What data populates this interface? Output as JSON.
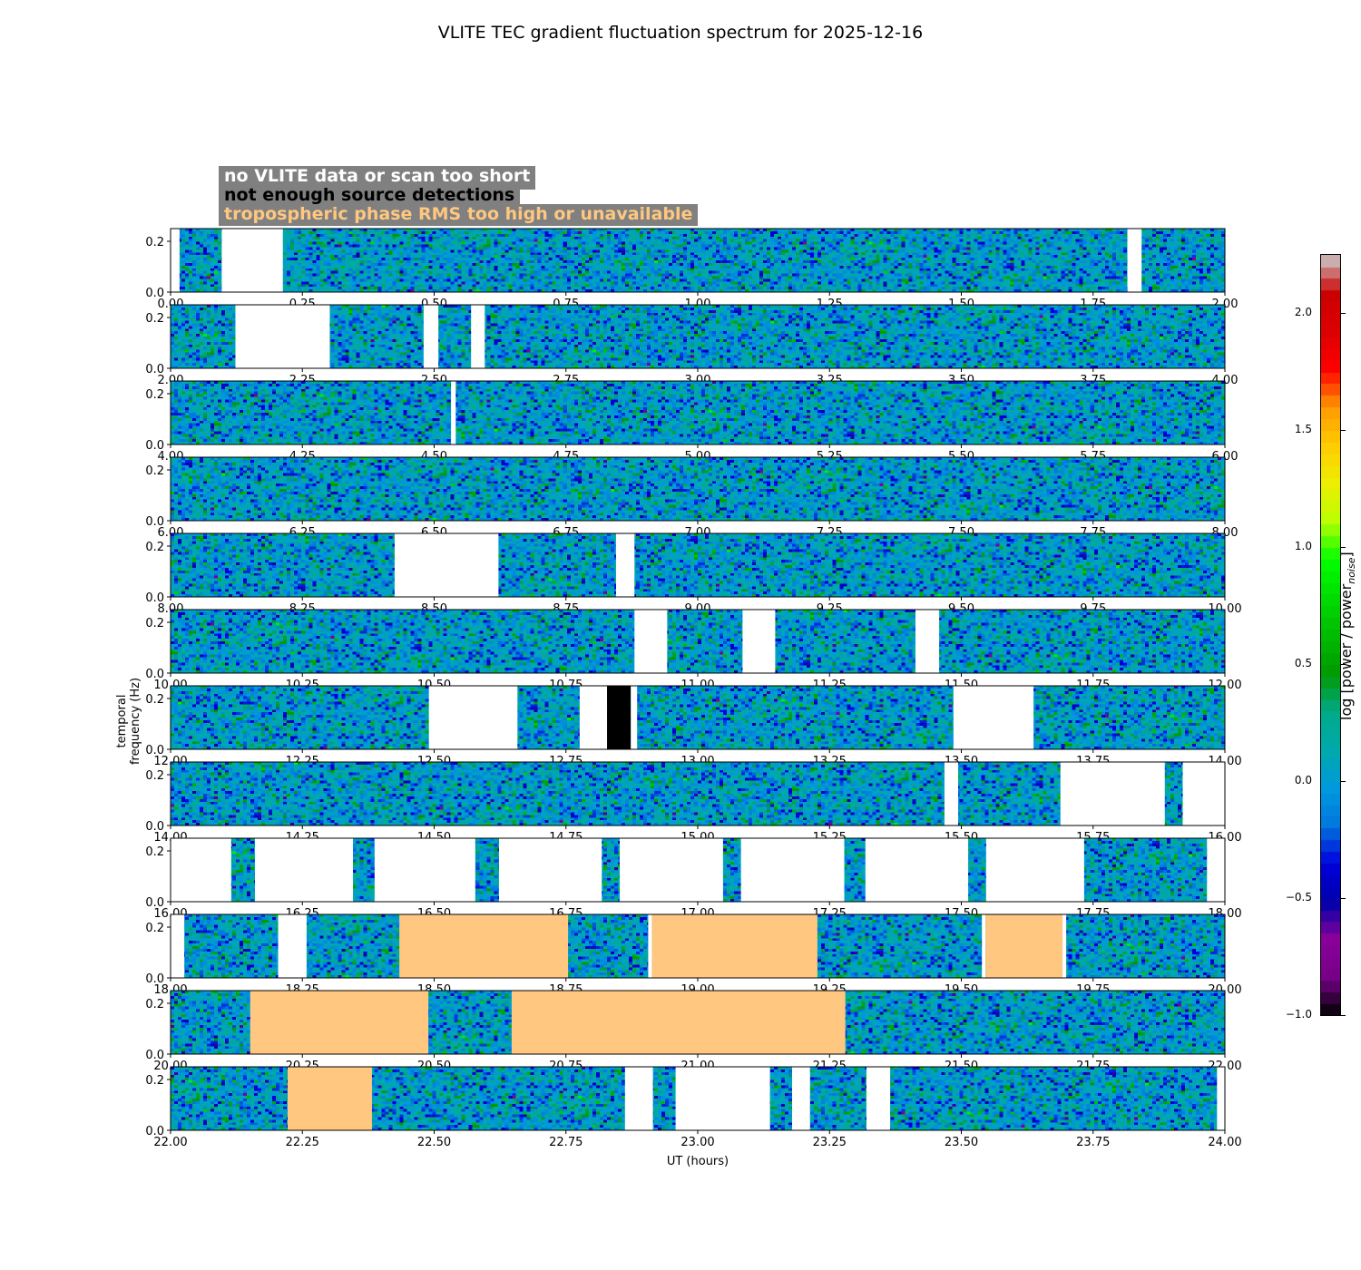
{
  "title": "VLITE TEC gradient fluctuation spectrum for 2025-12-16",
  "legend": {
    "no_data": "no VLITE data or scan too short",
    "no_detect": "not enough source detections",
    "tropo": "tropospheric phase RMS too high or unavailable"
  },
  "colors": {
    "no_data": "#ffffff",
    "no_detect": "#000000",
    "tropo": "#ffc77f",
    "legend_bg": "#808080"
  },
  "chart_data": {
    "type": "heatmap",
    "title": "VLITE TEC gradient fluctuation spectrum for 2025-12-16",
    "xlabel": "UT (hours)",
    "ylabel": "temporal frequency (Hz)",
    "colorbar_label": "log [power / power",
    "colorbar_label_sub": "noise",
    "colorbar_label_end": "]",
    "color_range": [
      -1.0,
      2.25
    ],
    "colorbar_ticks": [
      "2.0",
      "1.5",
      "1.0",
      "0.5",
      "0.0",
      "−0.5",
      "−1.0"
    ],
    "colorbar_tick_values": [
      2.0,
      1.5,
      1.0,
      0.5,
      0.0,
      -0.5,
      -1.0
    ],
    "ylim": [
      0,
      0.25
    ],
    "yticks": [
      "0.0",
      "0.2"
    ],
    "ytick_values": [
      0.0,
      0.2
    ],
    "panels": [
      {
        "xlim": [
          0,
          2
        ],
        "xticks": [
          "0.00",
          "0.25",
          "0.50",
          "0.75",
          "1.00",
          "1.25",
          "1.50",
          "1.75",
          "2.00"
        ],
        "masks": [
          {
            "x0": 0.0,
            "x1": 0.017,
            "kind": "no_data"
          },
          {
            "x0": 0.097,
            "x1": 0.213,
            "kind": "no_data"
          },
          {
            "x0": 1.815,
            "x1": 1.842,
            "kind": "no_data"
          }
        ]
      },
      {
        "xlim": [
          2,
          4
        ],
        "xticks": [
          "2.00",
          "2.25",
          "2.50",
          "2.75",
          "3.00",
          "3.25",
          "3.50",
          "3.75",
          "4.00"
        ],
        "masks": [
          {
            "x0": 2.123,
            "x1": 2.302,
            "kind": "no_data"
          },
          {
            "x0": 2.48,
            "x1": 2.508,
            "kind": "no_data"
          },
          {
            "x0": 2.57,
            "x1": 2.596,
            "kind": "no_data"
          }
        ]
      },
      {
        "xlim": [
          4,
          6
        ],
        "xticks": [
          "4.00",
          "4.25",
          "4.50",
          "4.75",
          "5.00",
          "5.25",
          "5.50",
          "5.75",
          "6.00"
        ],
        "masks": [
          {
            "x0": 4.532,
            "x1": 4.541,
            "kind": "no_data"
          }
        ]
      },
      {
        "xlim": [
          6,
          8
        ],
        "xticks": [
          "6.00",
          "6.25",
          "6.50",
          "6.75",
          "7.00",
          "7.25",
          "7.50",
          "7.75",
          "8.00"
        ],
        "masks": []
      },
      {
        "xlim": [
          8,
          10
        ],
        "xticks": [
          "8.00",
          "8.25",
          "8.50",
          "8.75",
          "9.00",
          "9.25",
          "9.50",
          "9.75",
          "10.00"
        ],
        "masks": [
          {
            "x0": 8.425,
            "x1": 8.622,
            "kind": "no_data"
          },
          {
            "x0": 8.845,
            "x1": 8.88,
            "kind": "no_data"
          }
        ]
      },
      {
        "xlim": [
          10,
          12
        ],
        "xticks": [
          "10.00",
          "10.25",
          "10.50",
          "10.75",
          "11.00",
          "11.25",
          "11.50",
          "11.75",
          "12.00"
        ],
        "masks": [
          {
            "x0": 10.88,
            "x1": 10.942,
            "kind": "no_data"
          },
          {
            "x0": 11.085,
            "x1": 11.147,
            "kind": "no_data"
          },
          {
            "x0": 11.413,
            "x1": 11.458,
            "kind": "no_data"
          }
        ]
      },
      {
        "xlim": [
          12,
          14
        ],
        "xticks": [
          "12.00",
          "12.25",
          "12.50",
          "12.75",
          "13.00",
          "13.25",
          "13.50",
          "13.75",
          "14.00"
        ],
        "masks": [
          {
            "x0": 12.49,
            "x1": 12.658,
            "kind": "no_data"
          },
          {
            "x0": 12.776,
            "x1": 12.828,
            "kind": "no_data"
          },
          {
            "x0": 12.828,
            "x1": 12.873,
            "kind": "no_detect"
          },
          {
            "x0": 12.873,
            "x1": 12.885,
            "kind": "no_data"
          },
          {
            "x0": 13.485,
            "x1": 13.637,
            "kind": "no_data"
          }
        ]
      },
      {
        "xlim": [
          14,
          16
        ],
        "xticks": [
          "14.00",
          "14.25",
          "14.50",
          "14.75",
          "15.00",
          "15.25",
          "15.50",
          "15.75",
          "16.00"
        ],
        "masks": [
          {
            "x0": 15.468,
            "x1": 15.494,
            "kind": "no_data"
          },
          {
            "x0": 15.688,
            "x1": 15.886,
            "kind": "no_data"
          },
          {
            "x0": 15.92,
            "x1": 16.0,
            "kind": "no_data"
          }
        ]
      },
      {
        "xlim": [
          16,
          18
        ],
        "xticks": [
          "16.00",
          "16.25",
          "16.50",
          "16.75",
          "17.00",
          "17.25",
          "17.50",
          "17.75",
          "18.00"
        ],
        "masks": [
          {
            "x0": 16.0,
            "x1": 16.115,
            "kind": "no_data"
          },
          {
            "x0": 16.16,
            "x1": 16.346,
            "kind": "no_data"
          },
          {
            "x0": 16.387,
            "x1": 16.578,
            "kind": "no_data"
          },
          {
            "x0": 16.623,
            "x1": 16.818,
            "kind": "no_data"
          },
          {
            "x0": 16.852,
            "x1": 17.048,
            "kind": "no_data"
          },
          {
            "x0": 17.082,
            "x1": 17.278,
            "kind": "no_data"
          },
          {
            "x0": 17.318,
            "x1": 17.513,
            "kind": "no_data"
          },
          {
            "x0": 17.547,
            "x1": 17.733,
            "kind": "no_data"
          },
          {
            "x0": 17.966,
            "x1": 18.0,
            "kind": "no_data"
          }
        ]
      },
      {
        "xlim": [
          18,
          20
        ],
        "xticks": [
          "18.00",
          "18.25",
          "18.50",
          "18.75",
          "19.00",
          "19.25",
          "19.50",
          "19.75",
          "20.00"
        ],
        "masks": [
          {
            "x0": 18.0,
            "x1": 18.026,
            "kind": "no_data"
          },
          {
            "x0": 18.204,
            "x1": 18.258,
            "kind": "no_data"
          },
          {
            "x0": 18.434,
            "x1": 18.754,
            "kind": "tropo"
          },
          {
            "x0": 18.906,
            "x1": 18.913,
            "kind": "no_data"
          },
          {
            "x0": 18.913,
            "x1": 19.227,
            "kind": "tropo"
          },
          {
            "x0": 19.539,
            "x1": 19.546,
            "kind": "no_data"
          },
          {
            "x0": 19.546,
            "x1": 19.692,
            "kind": "tropo"
          },
          {
            "x0": 19.692,
            "x1": 19.699,
            "kind": "no_data"
          }
        ]
      },
      {
        "xlim": [
          20,
          22
        ],
        "xticks": [
          "20.00",
          "20.25",
          "20.50",
          "20.75",
          "21.00",
          "21.25",
          "21.50",
          "21.75",
          "22.00"
        ],
        "masks": [
          {
            "x0": 20.151,
            "x1": 20.489,
            "kind": "tropo"
          },
          {
            "x0": 20.647,
            "x1": 21.28,
            "kind": "tropo"
          }
        ]
      },
      {
        "xlim": [
          22,
          24
        ],
        "xticks": [
          "22.00",
          "22.25",
          "22.50",
          "22.75",
          "23.00",
          "23.25",
          "23.50",
          "23.75",
          "24.00"
        ],
        "masks": [
          {
            "x0": 22.222,
            "x1": 22.382,
            "kind": "tropo"
          },
          {
            "x0": 22.862,
            "x1": 22.915,
            "kind": "no_data"
          },
          {
            "x0": 22.958,
            "x1": 23.137,
            "kind": "no_data"
          },
          {
            "x0": 23.179,
            "x1": 23.213,
            "kind": "no_data"
          },
          {
            "x0": 23.32,
            "x1": 23.365,
            "kind": "no_data"
          },
          {
            "x0": 23.985,
            "x1": 24.0,
            "kind": "no_data"
          }
        ]
      }
    ]
  }
}
